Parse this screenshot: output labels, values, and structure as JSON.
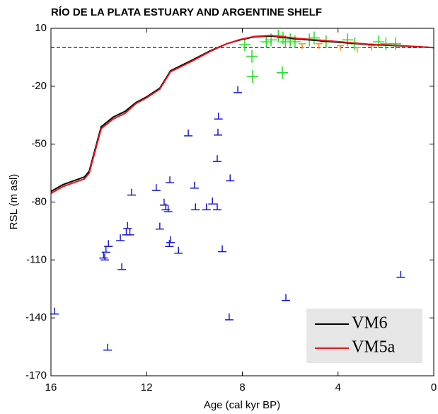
{
  "chart_data": {
    "type": "line",
    "title": "RÍO DE LA PLATA ESTUARY AND ARGENTINE SHELF",
    "xlabel": "Age (cal kyr BP)",
    "ylabel": "RSL (m asl)",
    "xlim": [
      16,
      0
    ],
    "xticks": [
      16,
      12,
      8,
      4,
      0
    ],
    "ylim": [
      -170,
      10
    ],
    "yticks": [
      -170,
      -140,
      -110,
      -80,
      -50,
      -20,
      10
    ],
    "reference_line": 0,
    "legend": "lower right",
    "series": [
      {
        "name": "VM6",
        "color": "#000000",
        "type": "line",
        "x": [
          16,
          15.5,
          14.6,
          14.4,
          13.9,
          13.4,
          12.9,
          12.45,
          12.0,
          11.45,
          11.0,
          10.1,
          9.35,
          8.65,
          8.1,
          7.5,
          6.8,
          5.7,
          4.2,
          2.75,
          1.55,
          0
        ],
        "values": [
          -74.5,
          -71,
          -67,
          -64,
          -41,
          -36,
          -33,
          -28.5,
          -25.5,
          -21,
          -12,
          -6.5,
          -1.7,
          2,
          4,
          5.6,
          6,
          4.5,
          3,
          1.6,
          1,
          0
        ]
      },
      {
        "name": "VM5a",
        "color": "#e8141a",
        "type": "line",
        "x": [
          16,
          15.5,
          14.6,
          14.4,
          13.9,
          13.4,
          12.9,
          12.45,
          12.0,
          11.45,
          11.0,
          10.1,
          9.35,
          8.65,
          8.1,
          7.5,
          6.8,
          5.7,
          4.2,
          2.75,
          1.55,
          0
        ],
        "values": [
          -75.5,
          -72,
          -68,
          -65,
          -42,
          -37,
          -34,
          -29,
          -26,
          -21.5,
          -12.5,
          -7,
          -2,
          2,
          4.2,
          5.8,
          6.3,
          4.8,
          3.3,
          1.8,
          1.1,
          0
        ]
      },
      {
        "color": "#1a1adb",
        "type": "scatter",
        "marker": "limiting",
        "x": [
          15.85,
          13.63,
          13.6,
          13.7,
          13.8,
          13.75,
          13.04,
          13.1,
          12.8,
          12.85,
          12.7,
          12.63,
          11.6,
          11.45,
          11.27,
          11.2,
          11.1,
          11.03,
          11.0,
          11.05,
          10.67,
          10.26,
          10.0,
          9.96,
          9.5,
          9.25,
          9.05,
          9.02,
          9.05,
          9.0,
          8.84,
          8.51,
          8.55,
          8.19,
          6.18,
          1.38
        ],
        "values": [
          -138,
          -156.7,
          -103,
          -106,
          -109,
          -110,
          -115,
          -100,
          -93.7,
          -97,
          -97,
          -76.4,
          -74,
          -94,
          -81.6,
          -84,
          -85,
          -70,
          -101,
          -103,
          -106.5,
          -45.7,
          -72.8,
          -84,
          -84,
          -81,
          -84,
          -45.3,
          -59,
          -37,
          -105.7,
          -69,
          -141,
          -23.3,
          -131,
          -119
        ]
      },
      {
        "color": "#ff8c1a",
        "type": "scatter",
        "marker": "upper",
        "x": [
          5.5,
          4.8,
          3.9,
          3.2,
          2.6
        ],
        "values": [
          2,
          2,
          1,
          0,
          1
        ]
      },
      {
        "color": "#22dd22",
        "type": "scatter",
        "marker": "cross",
        "x": [
          7.9,
          7.6,
          7.57,
          6.33,
          6.5,
          6.3,
          6.2,
          6.0,
          5.8,
          5.2,
          5.0,
          4.5,
          3.6,
          3.3,
          2.3,
          2.0,
          1.6,
          7.0,
          6.8
        ],
        "values": [
          1.5,
          -4.5,
          -15,
          -13,
          6,
          5,
          3,
          4,
          3,
          4,
          5,
          3,
          4,
          2,
          3,
          2,
          2,
          3,
          4
        ]
      }
    ]
  }
}
